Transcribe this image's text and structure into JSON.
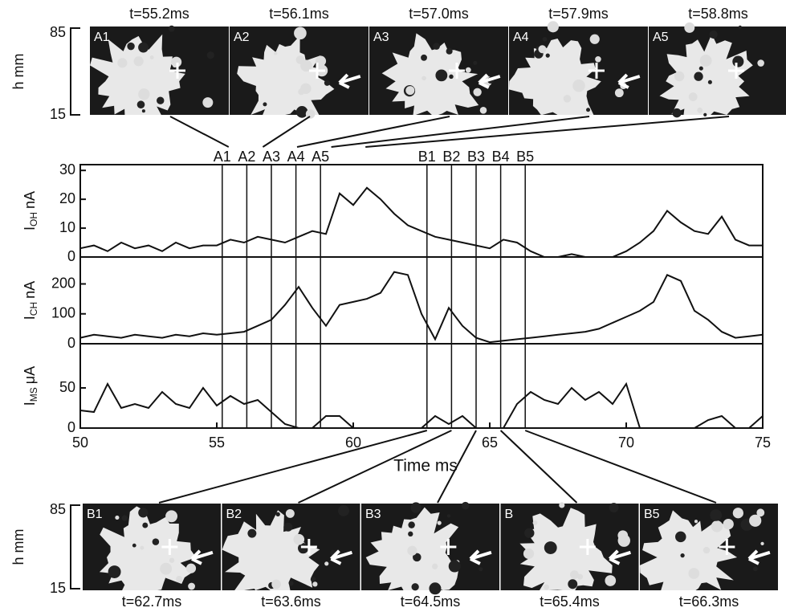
{
  "chart_data": [
    {
      "type": "line",
      "ylabel_main": "I",
      "ylabel_sub": "OH",
      "ylabel_unit": "nA",
      "xlim": [
        50,
        75
      ],
      "ylim": [
        0,
        32
      ],
      "yticks": [
        0,
        10,
        20,
        30
      ],
      "x": [
        50,
        50.5,
        51,
        51.5,
        52,
        52.5,
        53,
        53.5,
        54,
        54.5,
        55,
        55.5,
        56,
        56.5,
        57,
        57.5,
        58,
        58.5,
        59,
        59.5,
        60,
        60.5,
        61,
        61.5,
        62,
        62.5,
        63,
        63.5,
        64,
        64.5,
        65,
        65.5,
        66,
        66.5,
        67,
        67.5,
        68,
        68.5,
        69,
        69.5,
        70,
        70.5,
        71,
        71.5,
        72,
        72.5,
        73,
        73.5,
        74,
        74.5,
        75
      ],
      "series": [
        {
          "color": "#111111",
          "values": [
            3,
            4,
            2,
            5,
            3,
            4,
            2,
            5,
            3,
            4,
            4,
            6,
            5,
            7,
            6,
            5,
            7,
            9,
            8,
            22,
            18,
            24,
            20,
            15,
            11,
            9,
            7,
            6,
            5,
            4,
            3,
            6,
            5,
            2,
            0,
            0,
            1,
            0,
            0,
            0,
            2,
            5,
            9,
            16,
            12,
            9,
            8,
            14,
            6,
            4,
            4
          ]
        }
      ]
    },
    {
      "type": "line",
      "ylabel_main": "I",
      "ylabel_sub": "CH",
      "ylabel_unit": "nA",
      "xlim": [
        50,
        75
      ],
      "ylim": [
        0,
        290
      ],
      "yticks": [
        0,
        100,
        200
      ],
      "x": [
        50,
        50.5,
        51,
        51.5,
        52,
        52.5,
        53,
        53.5,
        54,
        54.5,
        55,
        55.5,
        56,
        56.5,
        57,
        57.5,
        58,
        58.5,
        59,
        59.5,
        60,
        60.5,
        61,
        61.5,
        62,
        62.5,
        63,
        63.5,
        64,
        64.5,
        65,
        65.5,
        66,
        66.5,
        67,
        67.5,
        68,
        68.5,
        69,
        69.5,
        70,
        70.5,
        71,
        71.5,
        72,
        72.5,
        73,
        73.5,
        74,
        74.5,
        75
      ],
      "series": [
        {
          "color": "#111111",
          "values": [
            20,
            30,
            25,
            20,
            30,
            25,
            20,
            30,
            25,
            35,
            30,
            35,
            40,
            60,
            80,
            130,
            190,
            120,
            60,
            130,
            140,
            150,
            170,
            240,
            230,
            100,
            15,
            120,
            60,
            20,
            5,
            10,
            15,
            20,
            25,
            30,
            35,
            40,
            50,
            70,
            90,
            110,
            140,
            230,
            210,
            110,
            80,
            40,
            20,
            25,
            30
          ]
        }
      ]
    },
    {
      "type": "line",
      "ylabel_main": "I",
      "ylabel_sub": "MS",
      "ylabel_unit": "μA",
      "xlim": [
        50,
        75
      ],
      "ylim": [
        0,
        105
      ],
      "yticks": [
        0,
        50
      ],
      "xticks": [
        50,
        55,
        60,
        65,
        70,
        75
      ],
      "xlabel": "Time  ms",
      "x": [
        50,
        50.5,
        51,
        51.5,
        52,
        52.5,
        53,
        53.5,
        54,
        54.5,
        55,
        55.5,
        56,
        56.5,
        57,
        57.5,
        58,
        58.5,
        59,
        59.5,
        60,
        60.5,
        61,
        61.5,
        62,
        62.5,
        63,
        63.5,
        64,
        64.5,
        65,
        65.5,
        66,
        66.5,
        67,
        67.5,
        68,
        68.5,
        69,
        69.5,
        70,
        70.5,
        71,
        71.5,
        72,
        72.5,
        73,
        73.5,
        74,
        74.5,
        75
      ],
      "series": [
        {
          "color": "#111111",
          "values": [
            22,
            20,
            55,
            25,
            30,
            25,
            45,
            30,
            25,
            50,
            28,
            40,
            30,
            35,
            20,
            5,
            0,
            0,
            15,
            15,
            0,
            0,
            0,
            0,
            0,
            0,
            15,
            5,
            15,
            0,
            0,
            0,
            30,
            45,
            35,
            30,
            50,
            35,
            45,
            30,
            55,
            0,
            0,
            0,
            0,
            0,
            10,
            15,
            0,
            0,
            15
          ]
        }
      ]
    }
  ],
  "markers": [
    {
      "label": "A1",
      "x": 55.2
    },
    {
      "label": "A2",
      "x": 56.1
    },
    {
      "label": "A3",
      "x": 57.0
    },
    {
      "label": "A4",
      "x": 57.9
    },
    {
      "label": "A5",
      "x": 58.8
    },
    {
      "label": "B1",
      "x": 62.7
    },
    {
      "label": "B2",
      "x": 63.6
    },
    {
      "label": "B3",
      "x": 64.5
    },
    {
      "label": "B4",
      "x": 65.4
    },
    {
      "label": "B5",
      "x": 66.3
    }
  ],
  "image_axis": {
    "label": "h  mm",
    "yticks": [
      85,
      15
    ]
  },
  "panels_top": [
    {
      "label": "A1",
      "time": "t=55.2ms"
    },
    {
      "label": "A2",
      "time": "t=56.1ms"
    },
    {
      "label": "A3",
      "time": "t=57.0ms"
    },
    {
      "label": "A4",
      "time": "t=57.9ms"
    },
    {
      "label": "A5",
      "time": "t=58.8ms"
    }
  ],
  "panels_bottom": [
    {
      "label": "B1",
      "time": "t=62.7ms"
    },
    {
      "label": "B2",
      "time": "t=63.6ms"
    },
    {
      "label": "B3",
      "time": "t=64.5ms"
    },
    {
      "label": "B",
      "time": "t=65.4ms"
    },
    {
      "label": "B5",
      "time": "t=66.3ms"
    }
  ]
}
